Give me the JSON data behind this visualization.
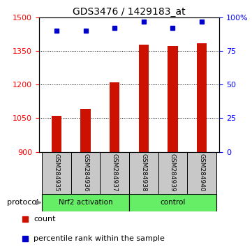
{
  "title": "GDS3476 / 1429183_at",
  "samples": [
    "GSM284935",
    "GSM284936",
    "GSM284937",
    "GSM284938",
    "GSM284939",
    "GSM284940"
  ],
  "counts": [
    1060,
    1092,
    1210,
    1378,
    1373,
    1383
  ],
  "percentile_ranks": [
    90,
    90,
    92,
    97,
    92,
    97
  ],
  "ylim_left": [
    900,
    1500
  ],
  "ylim_right": [
    0,
    100
  ],
  "yticks_left": [
    900,
    1050,
    1200,
    1350,
    1500
  ],
  "yticks_right": [
    0,
    25,
    50,
    75,
    100
  ],
  "ytick_labels_right": [
    "0",
    "25",
    "50",
    "75",
    "100%"
  ],
  "groups": [
    {
      "label": "Nrf2 activation",
      "indices": [
        0,
        1,
        2
      ],
      "color": "#66ee66"
    },
    {
      "label": "control",
      "indices": [
        3,
        4,
        5
      ],
      "color": "#66ee66"
    }
  ],
  "bar_color": "#CC1100",
  "dot_color": "#0000CC",
  "bar_width": 0.35,
  "group_box_color": "#C8C8C8",
  "protocol_label": "protocol",
  "legend_count_label": "count",
  "legend_pct_label": "percentile rank within the sample"
}
